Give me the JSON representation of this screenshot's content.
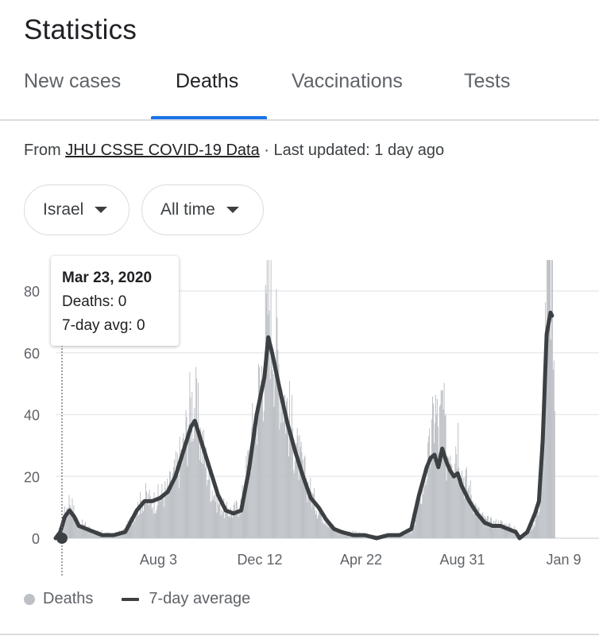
{
  "header": {
    "title": "Statistics"
  },
  "tabs": [
    {
      "label": "New cases"
    },
    {
      "label": "Deaths"
    },
    {
      "label": "Vaccinations"
    },
    {
      "label": "Tests"
    }
  ],
  "active_tab": "Deaths",
  "source": {
    "prefix": "From ",
    "link_text": "JHU CSSE COVID-19 Data",
    "suffix": " · Last updated: 1 day ago"
  },
  "filters": {
    "country": "Israel",
    "range": "All time"
  },
  "tooltip": {
    "date": "Mar 23, 2020",
    "deaths_line": "Deaths: 0",
    "avg_line": "7-day avg: 0"
  },
  "legend": {
    "bars_label": "Deaths",
    "line_label": "7-day average"
  },
  "colors": {
    "bars": "#bdc1c6",
    "line": "#3c4043",
    "accent": "#1a73e8",
    "grid": "#e8eaed"
  },
  "chart_data": {
    "type": "bar",
    "title": "Deaths",
    "xlabel": "",
    "ylabel": "",
    "ylim": [
      0,
      90
    ],
    "grid": true,
    "yticks": [
      0,
      20,
      40,
      60,
      80
    ],
    "xtick_labels": [
      {
        "label": "Aug 3",
        "day_index": 133
      },
      {
        "label": "Dec 12",
        "day_index": 264
      },
      {
        "label": "Apr 22",
        "day_index": 395
      },
      {
        "label": "Aug 31",
        "day_index": 526
      },
      {
        "label": "Jan 9",
        "day_index": 657
      }
    ],
    "x_start": "Mar 23, 2020",
    "num_days": 732,
    "highlight_day_index": 0,
    "series": [
      {
        "name": "Deaths",
        "style": "bars",
        "keyframes": [
          [
            0,
            0
          ],
          [
            6,
            4
          ],
          [
            12,
            9
          ],
          [
            18,
            13
          ],
          [
            24,
            8
          ],
          [
            30,
            5
          ],
          [
            40,
            4
          ],
          [
            50,
            2
          ],
          [
            60,
            2
          ],
          [
            75,
            1
          ],
          [
            90,
            3
          ],
          [
            105,
            10
          ],
          [
            115,
            14
          ],
          [
            125,
            12
          ],
          [
            135,
            14
          ],
          [
            145,
            16
          ],
          [
            155,
            22
          ],
          [
            165,
            30
          ],
          [
            175,
            45
          ],
          [
            180,
            44
          ],
          [
            190,
            30
          ],
          [
            200,
            18
          ],
          [
            210,
            12
          ],
          [
            220,
            9
          ],
          [
            230,
            9
          ],
          [
            240,
            12
          ],
          [
            250,
            28
          ],
          [
            260,
            45
          ],
          [
            270,
            62
          ],
          [
            275,
            85
          ],
          [
            280,
            72
          ],
          [
            290,
            55
          ],
          [
            300,
            42
          ],
          [
            310,
            30
          ],
          [
            320,
            22
          ],
          [
            330,
            15
          ],
          [
            340,
            9
          ],
          [
            350,
            6
          ],
          [
            360,
            3
          ],
          [
            370,
            2
          ],
          [
            385,
            2
          ],
          [
            400,
            1
          ],
          [
            415,
            1
          ],
          [
            430,
            1
          ],
          [
            445,
            1
          ],
          [
            460,
            2
          ],
          [
            475,
            18
          ],
          [
            485,
            30
          ],
          [
            490,
            45
          ],
          [
            495,
            35
          ],
          [
            500,
            45
          ],
          [
            505,
            28
          ],
          [
            510,
            32
          ],
          [
            515,
            30
          ],
          [
            520,
            35
          ],
          [
            525,
            22
          ],
          [
            535,
            16
          ],
          [
            545,
            9
          ],
          [
            555,
            6
          ],
          [
            565,
            5
          ],
          [
            575,
            5
          ],
          [
            585,
            4
          ],
          [
            595,
            3
          ],
          [
            600,
            1
          ],
          [
            610,
            2
          ],
          [
            620,
            6
          ],
          [
            625,
            12
          ],
          [
            630,
            42
          ],
          [
            635,
            88
          ],
          [
            640,
            90
          ],
          [
            645,
            50
          ]
        ]
      },
      {
        "name": "7-day average",
        "style": "line",
        "keyframes": [
          [
            0,
            0
          ],
          [
            6,
            2
          ],
          [
            12,
            7
          ],
          [
            18,
            9
          ],
          [
            24,
            7
          ],
          [
            30,
            4
          ],
          [
            40,
            3
          ],
          [
            50,
            2
          ],
          [
            60,
            1
          ],
          [
            75,
            1
          ],
          [
            90,
            2
          ],
          [
            105,
            9
          ],
          [
            115,
            12
          ],
          [
            125,
            12
          ],
          [
            135,
            13
          ],
          [
            145,
            15
          ],
          [
            155,
            20
          ],
          [
            165,
            28
          ],
          [
            175,
            36
          ],
          [
            180,
            38
          ],
          [
            185,
            34
          ],
          [
            190,
            30
          ],
          [
            200,
            22
          ],
          [
            210,
            14
          ],
          [
            220,
            9
          ],
          [
            230,
            8
          ],
          [
            240,
            9
          ],
          [
            250,
            22
          ],
          [
            260,
            40
          ],
          [
            270,
            52
          ],
          [
            275,
            65
          ],
          [
            280,
            60
          ],
          [
            290,
            48
          ],
          [
            300,
            37
          ],
          [
            310,
            28
          ],
          [
            320,
            20
          ],
          [
            330,
            13
          ],
          [
            340,
            10
          ],
          [
            350,
            6
          ],
          [
            360,
            3
          ],
          [
            370,
            2
          ],
          [
            385,
            1
          ],
          [
            400,
            1
          ],
          [
            415,
            0
          ],
          [
            430,
            1
          ],
          [
            445,
            1
          ],
          [
            460,
            3
          ],
          [
            470,
            14
          ],
          [
            480,
            23
          ],
          [
            485,
            26
          ],
          [
            490,
            27
          ],
          [
            495,
            23
          ],
          [
            500,
            29
          ],
          [
            505,
            25
          ],
          [
            510,
            22
          ],
          [
            515,
            20
          ],
          [
            520,
            21
          ],
          [
            525,
            17
          ],
          [
            535,
            12
          ],
          [
            545,
            8
          ],
          [
            555,
            5
          ],
          [
            565,
            4
          ],
          [
            575,
            4
          ],
          [
            585,
            3
          ],
          [
            595,
            2
          ],
          [
            600,
            0
          ],
          [
            610,
            2
          ],
          [
            620,
            8
          ],
          [
            625,
            12
          ],
          [
            630,
            32
          ],
          [
            635,
            66
          ],
          [
            640,
            73
          ],
          [
            642,
            72
          ]
        ]
      }
    ]
  }
}
